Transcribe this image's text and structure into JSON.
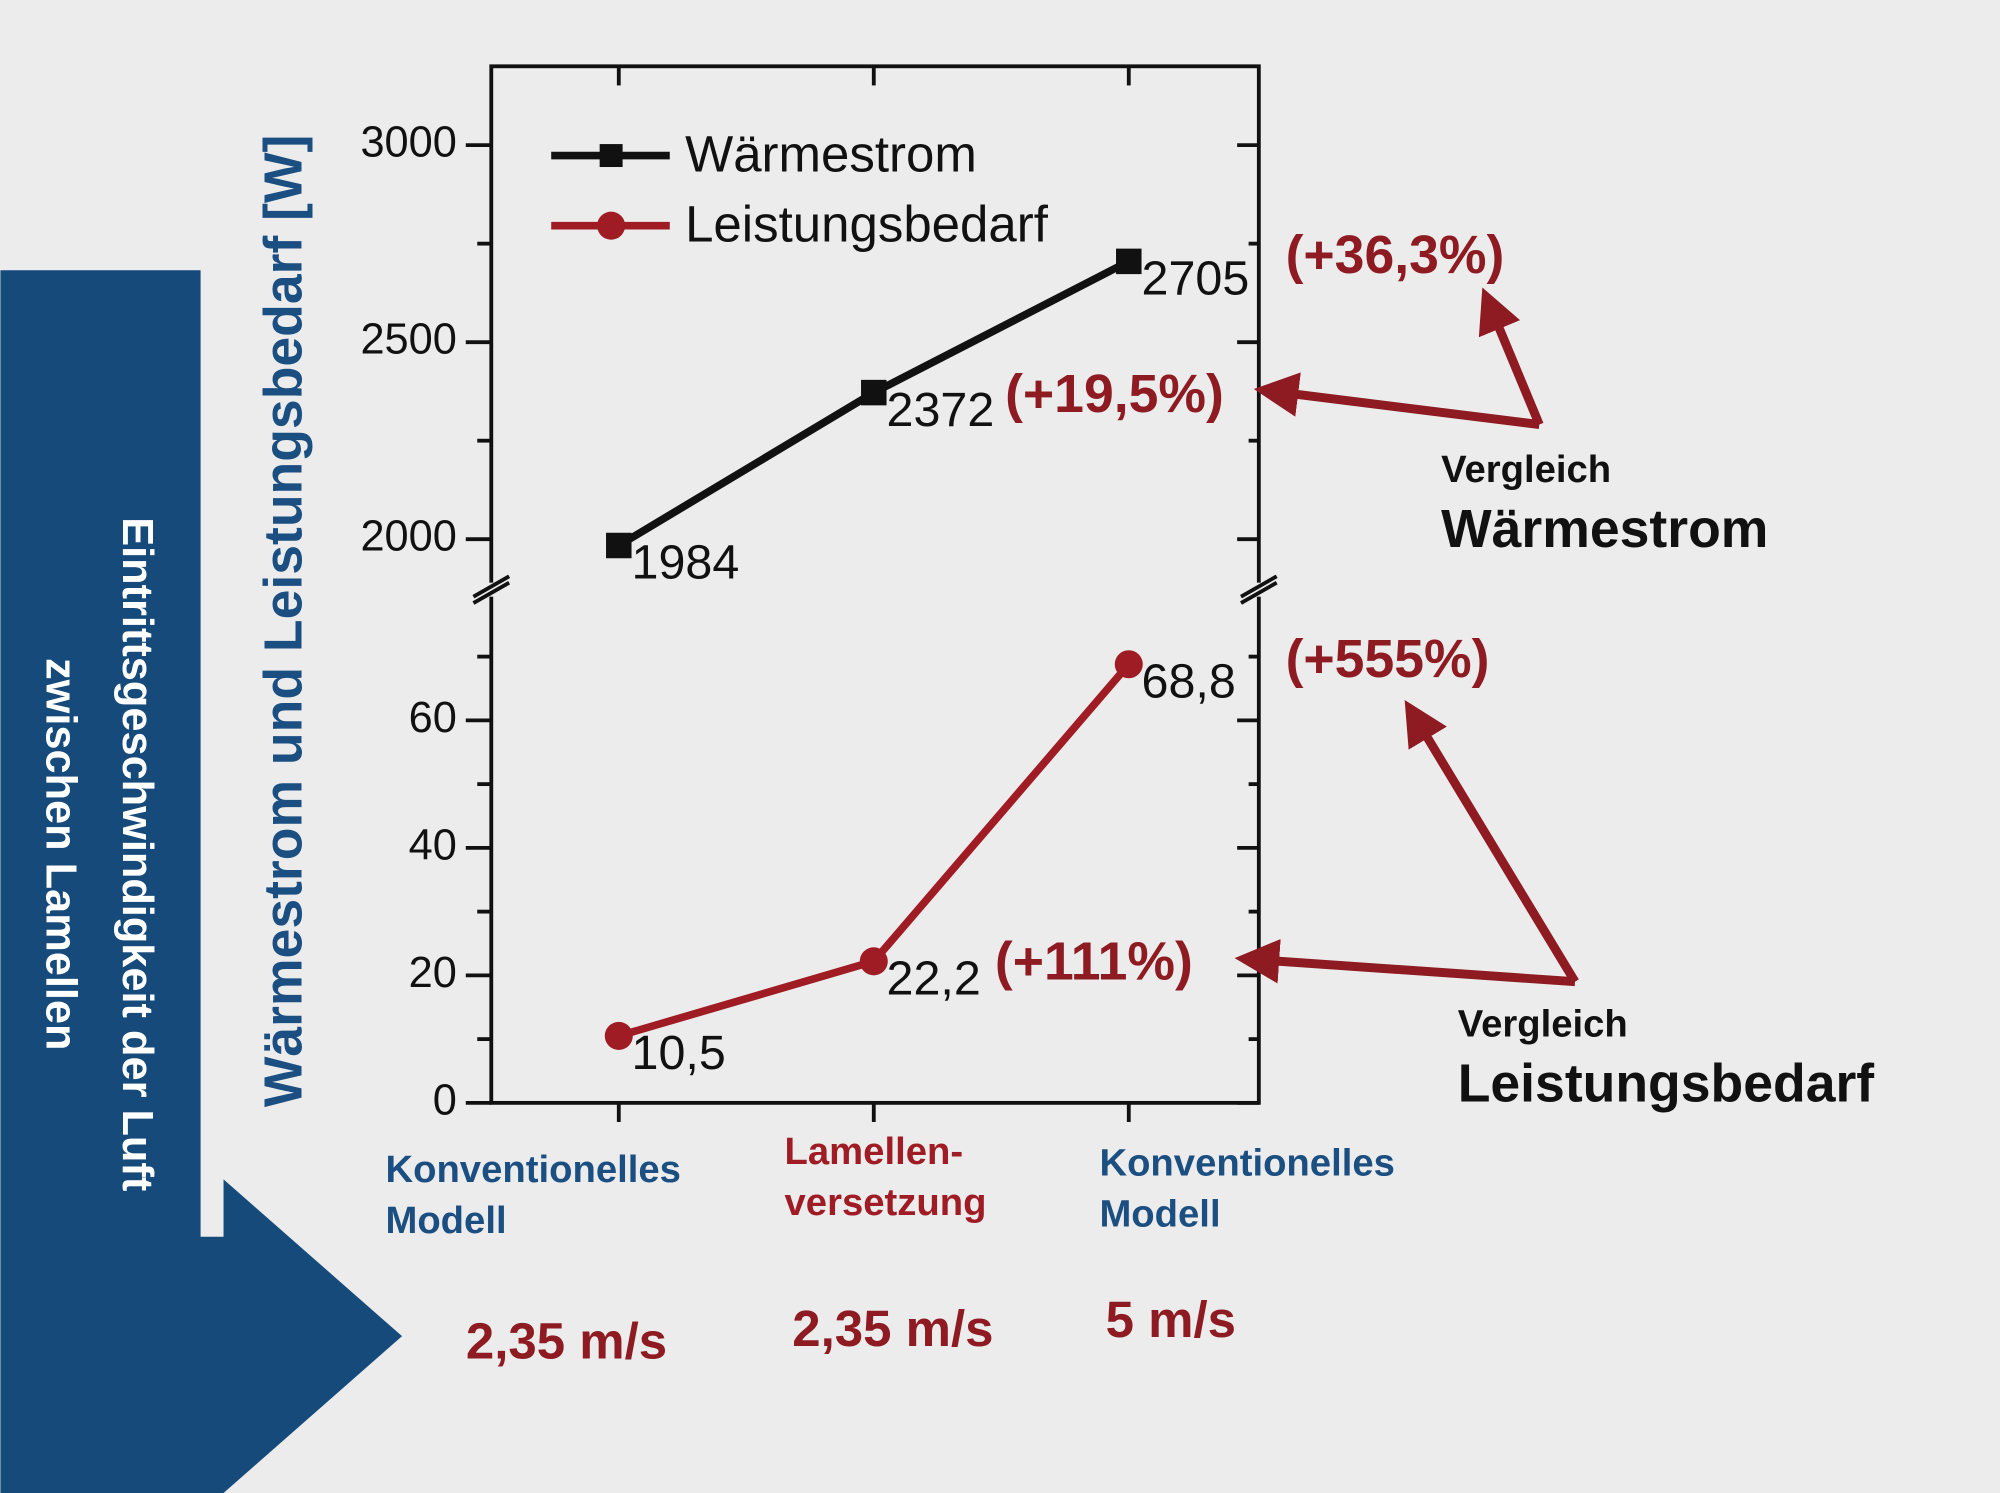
{
  "chart_data": {
    "type": "line",
    "y_axis_label": "Wärmestrom und Leistungsbedarf [W]",
    "side_label": [
      "Eintrittsgeschwindigkeit der Luft",
      "zwischen Lamellen"
    ],
    "categories": [
      "Konventionelles Modell",
      "Lamellen-versetzung",
      "Konventionelles Modell"
    ],
    "category_colors": [
      "#1b4f82",
      "#a01c24",
      "#1b4f82"
    ],
    "speeds": [
      "2,35 m/s",
      "2,35 m/s",
      "5 m/s"
    ],
    "series": [
      {
        "name": "Wärmestrom",
        "color": "#111111",
        "marker": "square",
        "axis": "y2",
        "values": [
          1984,
          2372,
          2705
        ]
      },
      {
        "name": "Leistungsbedarf",
        "color": "#a01c24",
        "marker": "circle",
        "values": [
          10.5,
          22.2,
          68.8
        ],
        "value_labels": [
          "10,5",
          "22,2",
          "68,8"
        ]
      }
    ],
    "ylim": [
      0,
      80
    ],
    "yticks": [
      0,
      20,
      40,
      60
    ],
    "yminorticks": [
      10,
      30,
      50,
      70
    ],
    "y2lim": [
      1880,
      3200
    ],
    "y2ticks": [
      2000,
      2500,
      3000
    ],
    "y2minorticks": [
      2250,
      2750
    ],
    "axis_break": true,
    "comparisons": [
      {
        "title": "Vergleich",
        "subject": "Wärmestrom",
        "changes": [
          "(+19,5%)",
          "(+36,3%)"
        ]
      },
      {
        "title": "Vergleich",
        "subject": "Leistungsbedarf",
        "changes": [
          "(+111%)",
          "(+555%)"
        ]
      }
    ]
  }
}
